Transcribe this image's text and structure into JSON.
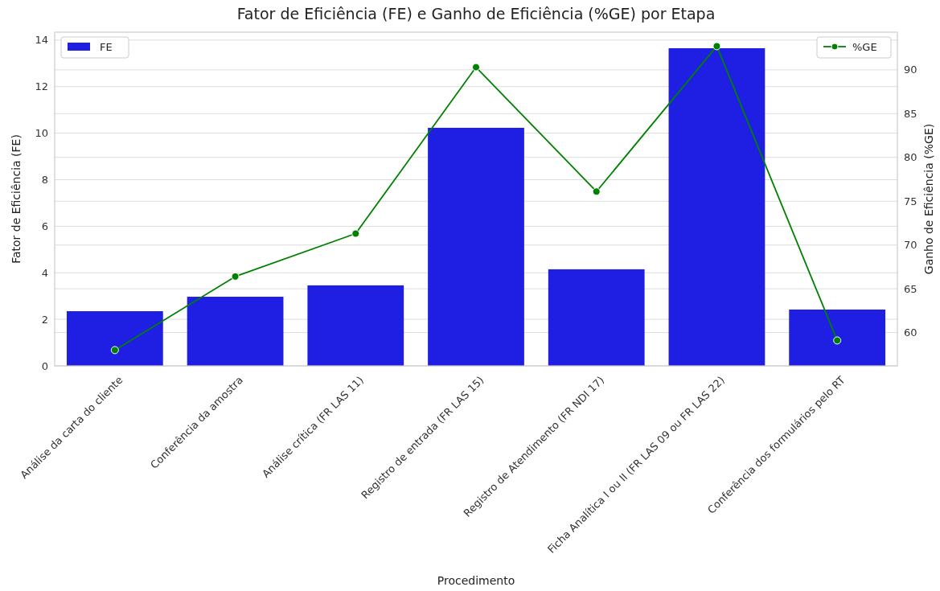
{
  "chart_data": {
    "type": "bar",
    "title": "Fator de Eficiência (FE) e Ganho de Eficiência (%GE) por Etapa",
    "xlabel": "Procedimento",
    "ylabel": "Fator de Eficiência (FE)",
    "y2label": "Ganho de Eficiência (%GE)",
    "categories": [
      "Análise da carta do cliente",
      "Conferência da amostra",
      "Análise crítica (FR LAS 11)",
      "Registro de entrada (FR LAS 15)",
      "Registro de Atendimento (FR NDI 17)",
      "Ficha Analítica I ou II (FR LAS 09 ou FR LAS 22)",
      "Conferência dos formulários pelo RT"
    ],
    "series": [
      {
        "name": "FE",
        "color": "#1f1fe3",
        "values": [
          2.35,
          2.97,
          3.46,
          10.23,
          4.15,
          13.65,
          2.42
        ]
      },
      {
        "name": "%GE",
        "type": "line",
        "axis": "y2",
        "color": "#008000",
        "marker": "circle",
        "values": [
          58.0,
          66.4,
          71.3,
          90.3,
          76.1,
          92.7,
          59.1
        ]
      }
    ],
    "ylim": [
      0,
      14.34
    ],
    "yticks": [
      0,
      2,
      4,
      6,
      8,
      10,
      12,
      14
    ],
    "y2lim": [
      56.2,
      94.3
    ],
    "y2ticks": [
      60,
      65,
      70,
      75,
      80,
      85,
      90
    ],
    "grid": "y",
    "legend": "top"
  }
}
